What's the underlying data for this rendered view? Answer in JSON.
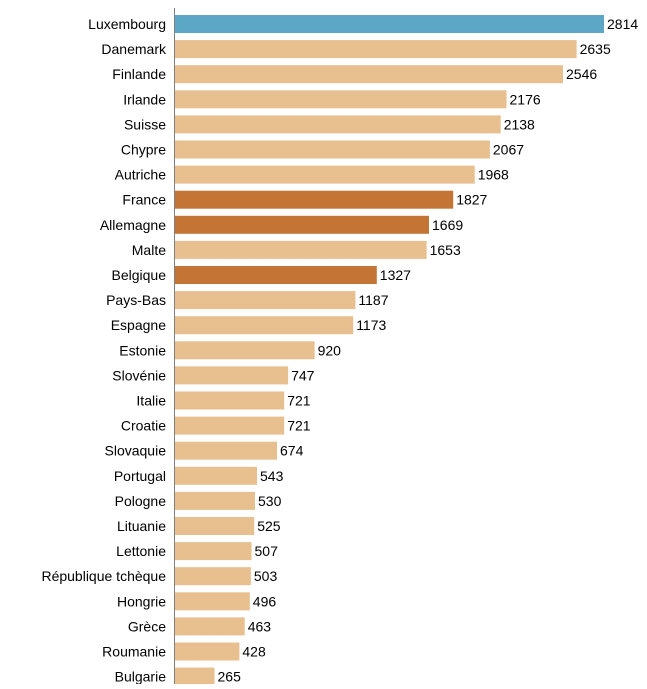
{
  "chart_data": {
    "type": "bar",
    "orientation": "horizontal",
    "title": "",
    "xlabel": "",
    "ylabel": "",
    "xlim": [
      0,
      2814
    ],
    "grid": false,
    "legend": "none",
    "categories": [
      "Luxembourg",
      "Danemark",
      "Finlande",
      "Irlande",
      "Suisse",
      "Chypre",
      "Autriche",
      "France",
      "Allemagne",
      "Malte",
      "Belgique",
      "Pays-Bas",
      "Espagne",
      "Estonie",
      "Slovénie",
      "Italie",
      "Croatie",
      "Slovaquie",
      "Portugal",
      "Pologne",
      "Lituanie",
      "Lettonie",
      "République tchèque",
      "Hongrie",
      "Grèce",
      "Roumanie",
      "Bulgarie"
    ],
    "values": [
      2814,
      2635,
      2546,
      2176,
      2138,
      2067,
      1968,
      1827,
      1669,
      1653,
      1327,
      1187,
      1173,
      920,
      747,
      721,
      721,
      674,
      543,
      530,
      525,
      507,
      503,
      496,
      463,
      428,
      265
    ],
    "bar_colors": [
      "#5ba7c5",
      "#e8bf8e",
      "#e8bf8e",
      "#e8bf8e",
      "#e8bf8e",
      "#e8bf8e",
      "#e8bf8e",
      "#c47535",
      "#c47535",
      "#e8bf8e",
      "#c47535",
      "#e8bf8e",
      "#e8bf8e",
      "#e8bf8e",
      "#e8bf8e",
      "#e8bf8e",
      "#e8bf8e",
      "#e8bf8e",
      "#e8bf8e",
      "#e8bf8e",
      "#e8bf8e",
      "#e8bf8e",
      "#e8bf8e",
      "#e8bf8e",
      "#e8bf8e",
      "#e8bf8e",
      "#e8bf8e"
    ]
  },
  "colors": {
    "highlight": "#5ba7c5",
    "accent": "#c47535",
    "default": "#e8bf8e",
    "axis": "#808080",
    "text": "#000000"
  }
}
